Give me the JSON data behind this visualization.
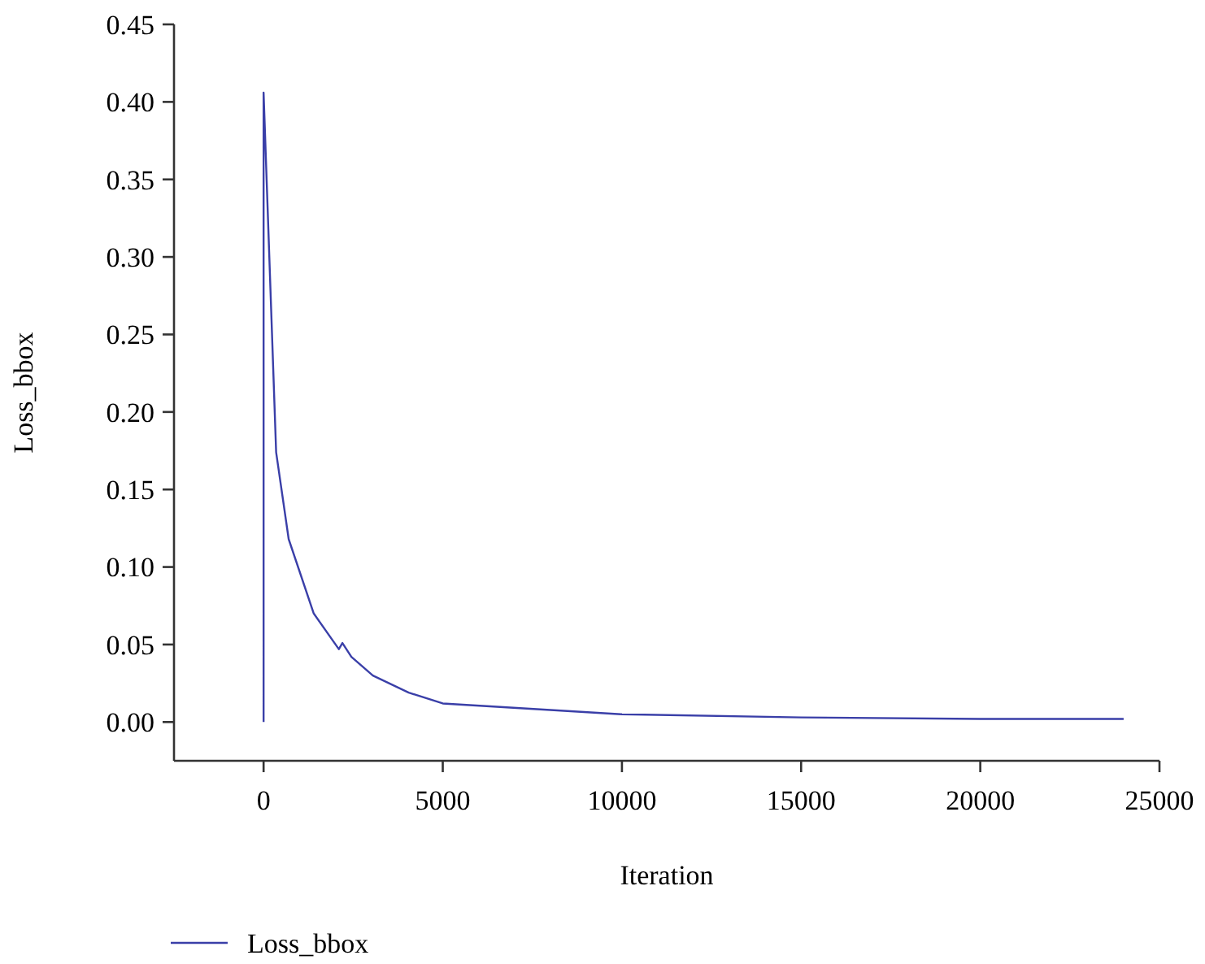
{
  "chart_data": {
    "type": "line",
    "xlabel": "Iteration",
    "ylabel": "Loss_bbox",
    "xlim": [
      -2500,
      25000
    ],
    "xticks": [
      0,
      5000,
      10000,
      15000,
      20000,
      25000
    ],
    "ylim": [
      -0.025,
      0.45
    ],
    "yticks": [
      {
        "value": 0,
        "label": "0.00"
      },
      {
        "value": 0.05,
        "label": "0.05"
      },
      {
        "value": 0.1,
        "label": "0.10"
      },
      {
        "value": 0.15,
        "label": "0.15"
      },
      {
        "value": 0.2,
        "label": "0.20"
      },
      {
        "value": 0.25,
        "label": "0.25"
      },
      {
        "value": 0.3,
        "label": "0.30"
      },
      {
        "value": 0.35,
        "label": "0.35"
      },
      {
        "value": 0.4,
        "label": "0.40"
      },
      {
        "value": 0.45,
        "label": "0.45"
      }
    ],
    "legend": "bottom left",
    "grid": false,
    "series": [
      {
        "name": "Loss_bbox",
        "color": "#3a3fa8",
        "x": [
          0,
          0,
          350,
          700,
          1400,
          2100,
          2200,
          2450,
          3050,
          4050,
          5000,
          10000,
          15000,
          20000,
          24000
        ],
        "values": [
          0,
          0.406,
          0.174,
          0.118,
          0.07,
          0.047,
          0.051,
          0.042,
          0.03,
          0.019,
          0.012,
          0.005,
          0.003,
          0.002,
          0.002
        ]
      }
    ]
  }
}
